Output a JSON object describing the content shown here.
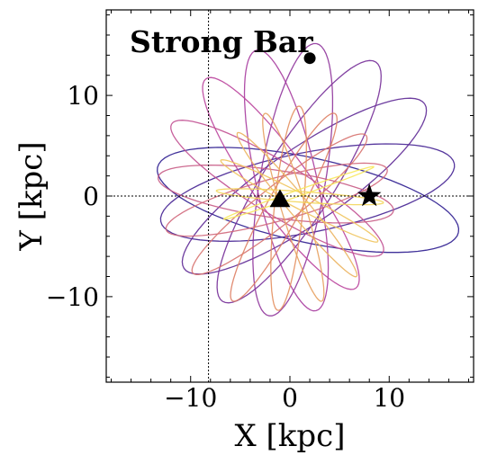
{
  "chart_data": {
    "type": "line",
    "title": "Strong Bar",
    "xlabel": "X [kpc]",
    "ylabel": "Y [kpc]",
    "xlim": [
      -18.5,
      18.5
    ],
    "ylim": [
      -18.5,
      18.5
    ],
    "xticks": [
      -10,
      0,
      10
    ],
    "yticks": [
      -10,
      0,
      10
    ],
    "xtick_labels": [
      "−10",
      "0",
      "10"
    ],
    "ytick_labels": [
      "−10",
      "0",
      "10"
    ],
    "grid": false,
    "reference_lines": {
      "x": -8.2,
      "y": 0
    },
    "colors": {
      "early": "#2b1b8f",
      "mid": "#b83fa0",
      "late": "#e0825f",
      "end": "#f7e85a"
    },
    "colormap": "plasma",
    "markers": [
      {
        "name": "circle",
        "shape": "circle",
        "x": 2,
        "y": 13.7
      },
      {
        "name": "triangle",
        "shape": "triangle",
        "x": -1,
        "y": -0.4
      },
      {
        "name": "star",
        "shape": "star",
        "x": 8,
        "y": 0
      }
    ],
    "series": [
      {
        "rosette_loops": 18,
        "semi_major_start": 15.5,
        "semi_major_end": 8,
        "semi_minor_start": 4.2,
        "semi_minor_end": 0.3,
        "turns_per_loop_deg": 23,
        "start_angle_deg": -12
      }
    ]
  }
}
